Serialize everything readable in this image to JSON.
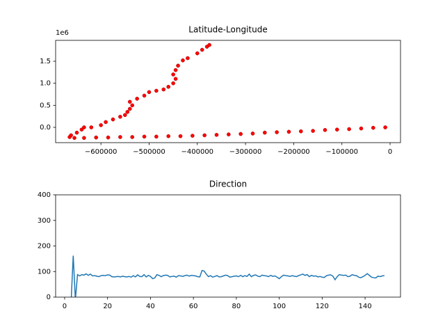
{
  "chart_data": [
    {
      "type": "scatter",
      "title": "Latitude-Longitude",
      "color": "#ff0000",
      "y_offset_text": "1e6",
      "x": [
        -10000,
        -35000,
        -60000,
        -85000,
        -110000,
        -135000,
        -160000,
        -185000,
        -210000,
        -235000,
        -260000,
        -285000,
        -310000,
        -335000,
        -360000,
        -385000,
        -410000,
        -435000,
        -460000,
        -485000,
        -510000,
        -535000,
        -560000,
        -585000,
        -610000,
        -635000,
        -655000,
        -665000,
        -662000,
        -650000,
        -640000,
        -635000,
        -620000,
        -600000,
        -590000,
        -575000,
        -560000,
        -550000,
        -545000,
        -540000,
        -535000,
        -540000,
        -525000,
        -510000,
        -500000,
        -485000,
        -470000,
        -460000,
        -450000,
        -445000,
        -450000,
        -445000,
        -440000,
        -430000,
        -420000,
        -400000,
        -390000,
        -380000,
        -375000
      ],
      "y": [
        0.0,
        -0.01,
        -0.025,
        -0.04,
        -0.05,
        -0.06,
        -0.08,
        -0.09,
        -0.1,
        -0.11,
        -0.12,
        -0.14,
        -0.15,
        -0.16,
        -0.17,
        -0.18,
        -0.19,
        -0.2,
        -0.2,
        -0.21,
        -0.21,
        -0.22,
        -0.22,
        -0.23,
        -0.23,
        -0.24,
        -0.24,
        -0.22,
        -0.18,
        -0.12,
        -0.05,
        0.0,
        0.0,
        0.05,
        0.12,
        0.18,
        0.24,
        0.28,
        0.35,
        0.42,
        0.5,
        0.58,
        0.65,
        0.72,
        0.8,
        0.83,
        0.86,
        0.92,
        1.0,
        1.1,
        1.2,
        1.3,
        1.4,
        1.52,
        1.57,
        1.68,
        1.76,
        1.83,
        1.87
      ],
      "xlim": [
        -694000,
        21600
      ],
      "ylim": [
        -0.347,
        1.974
      ],
      "xticks": [
        {
          "value": -600000,
          "label": "−600000"
        },
        {
          "value": -500000,
          "label": "−500000"
        },
        {
          "value": -400000,
          "label": "−400000"
        },
        {
          "value": -300000,
          "label": "−300000"
        },
        {
          "value": -200000,
          "label": "−200000"
        },
        {
          "value": -100000,
          "label": "−100000"
        },
        0
      ],
      "yticks": [
        {
          "value": 0,
          "label": "0.0"
        },
        0.5,
        {
          "value": 1,
          "label": "1.0"
        },
        1.5
      ]
    },
    {
      "type": "line",
      "title": "Direction",
      "color": "#1f77b4",
      "x": [
        0,
        1,
        2,
        3,
        4,
        5,
        6,
        7,
        8,
        9,
        10,
        11,
        12,
        13,
        14,
        15,
        16,
        17,
        18,
        19,
        20,
        21,
        22,
        23,
        24,
        25,
        26,
        27,
        28,
        29,
        30,
        31,
        32,
        33,
        34,
        35,
        36,
        37,
        38,
        39,
        40,
        41,
        42,
        43,
        44,
        45,
        46,
        47,
        48,
        49,
        50,
        51,
        52,
        53,
        54,
        55,
        56,
        57,
        58,
        59,
        60,
        61,
        62,
        63,
        64,
        65,
        66,
        67,
        68,
        69,
        70,
        71,
        72,
        73,
        74,
        75,
        76,
        77,
        78,
        79,
        80,
        81,
        82,
        83,
        84,
        85,
        86,
        87,
        88,
        89,
        90,
        91,
        92,
        93,
        94,
        95,
        96,
        97,
        98,
        99,
        100,
        101,
        102,
        103,
        104,
        105,
        106,
        107,
        108,
        109,
        110,
        111,
        112,
        113,
        114,
        115,
        116,
        117,
        118,
        119,
        120,
        121,
        122,
        123,
        124,
        125,
        126,
        127,
        128,
        129,
        130,
        131,
        132,
        133,
        134,
        135,
        136,
        137,
        138,
        139,
        140,
        141,
        142,
        143,
        144,
        145,
        146,
        147,
        148,
        149
      ],
      "values": [
        null,
        null,
        null,
        -20,
        162,
        -10,
        88,
        83,
        88,
        86,
        91,
        85,
        90,
        83,
        84,
        82,
        80,
        84,
        85,
        84,
        87,
        86,
        80,
        79,
        80,
        81,
        79,
        82,
        80,
        79,
        81,
        78,
        84,
        79,
        87,
        81,
        80,
        88,
        79,
        85,
        81,
        72,
        75,
        88,
        85,
        80,
        84,
        86,
        85,
        79,
        81,
        82,
        78,
        84,
        83,
        81,
        84,
        86,
        82,
        85,
        84,
        83,
        80,
        79,
        104,
        102,
        90,
        80,
        84,
        78,
        81,
        84,
        79,
        80,
        83,
        86,
        84,
        78,
        80,
        82,
        83,
        80,
        85,
        80,
        84,
        81,
        90,
        80,
        85,
        87,
        82,
        80,
        86,
        84,
        83,
        80,
        85,
        81,
        83,
        78,
        72,
        80,
        86,
        84,
        83,
        81,
        84,
        82,
        80,
        84,
        87,
        90,
        85,
        88,
        80,
        85,
        82,
        83,
        79,
        81,
        78,
        77,
        84,
        86,
        87,
        82,
        68,
        80,
        88,
        86,
        85,
        86,
        80,
        82,
        88,
        85,
        84,
        78,
        76,
        80,
        85,
        92,
        85,
        78,
        76,
        75,
        82,
        80,
        83,
        84
      ],
      "xlim": [
        -4.2,
        156.5
      ],
      "ylim": [
        0,
        400
      ],
      "xticks": [
        0,
        20,
        40,
        60,
        80,
        100,
        120,
        140
      ],
      "yticks": [
        0,
        100,
        200,
        300,
        400
      ]
    }
  ]
}
